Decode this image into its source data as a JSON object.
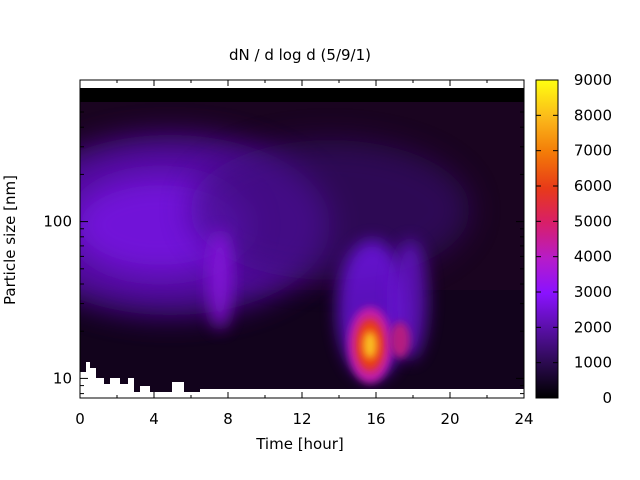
{
  "chart_data": {
    "type": "heatmap",
    "title": "dN / d log d (5/9/1)",
    "xlabel": "Time [hour]",
    "ylabel": "Particle size [nm]",
    "x_range": [
      0,
      24
    ],
    "x_ticks": [
      "0",
      "4",
      "8",
      "12",
      "16",
      "20",
      "24"
    ],
    "y_scale": "log",
    "y_range_nm": [
      7.5,
      800
    ],
    "y_ticks": [
      "10",
      "100"
    ],
    "colorbar": {
      "range": [
        0,
        9000
      ],
      "ticks": [
        "0",
        "1000",
        "2000",
        "3000",
        "4000",
        "5000",
        "6000",
        "7000",
        "8000",
        "9000"
      ],
      "colors": [
        "#000000",
        "#2b0a4f",
        "#5a0fa8",
        "#8a12ff",
        "#b71cc8",
        "#d81e6a",
        "#e83a18",
        "#f37a08",
        "#fbb81a",
        "#ffff10"
      ]
    },
    "features": [
      {
        "time_h": [
          0,
          10
        ],
        "size_nm": [
          40,
          300
        ],
        "value": 1800,
        "desc": "broad accumulation mode"
      },
      {
        "time_h": [
          7,
          8
        ],
        "size_nm": [
          30,
          80
        ],
        "value": 3000
      },
      {
        "time_h": [
          15,
          16.3
        ],
        "size_nm": [
          12,
          30
        ],
        "value": 8500,
        "desc": "nucleation burst peak"
      },
      {
        "time_h": [
          16.8,
          17.6
        ],
        "size_nm": [
          15,
          25
        ],
        "value": 3800
      },
      {
        "time_h": [
          18,
          19
        ],
        "size_nm": [
          12,
          60
        ],
        "value": 2500
      }
    ]
  }
}
